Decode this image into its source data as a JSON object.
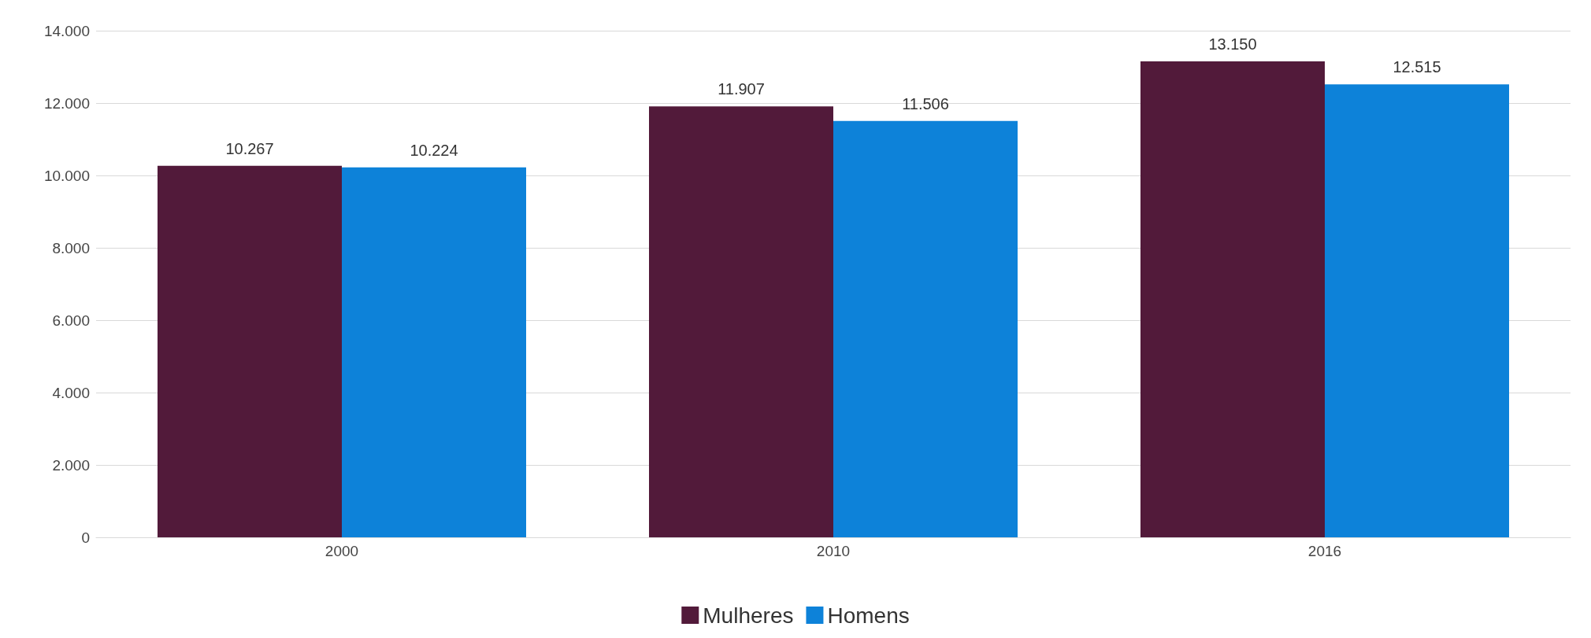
{
  "chart_data": {
    "type": "bar",
    "categories": [
      "2000",
      "2010",
      "2016"
    ],
    "series": [
      {
        "name": "Mulheres",
        "color": "#521a3a",
        "values": [
          10267,
          11907,
          13150
        ],
        "value_labels": [
          "10.267",
          "11.907",
          "13.150"
        ]
      },
      {
        "name": "Homens",
        "color": "#0d82d9",
        "values": [
          10224,
          11506,
          12515
        ],
        "value_labels": [
          "10.224",
          "11.506",
          "12.515"
        ]
      }
    ],
    "ylim": [
      0,
      14000
    ],
    "yticks": [
      0,
      {
        "value": 2000,
        "label": "2.000"
      },
      {
        "value": 4000,
        "label": "4.000"
      },
      {
        "value": 6000,
        "label": "6.000"
      },
      {
        "value": 8000,
        "label": "8.000"
      },
      {
        "value": 10000,
        "label": "10.000"
      },
      {
        "value": 12000,
        "label": "12.000"
      },
      {
        "value": 14000,
        "label": "14.000"
      }
    ],
    "grid": "y",
    "legend": "bottom"
  }
}
